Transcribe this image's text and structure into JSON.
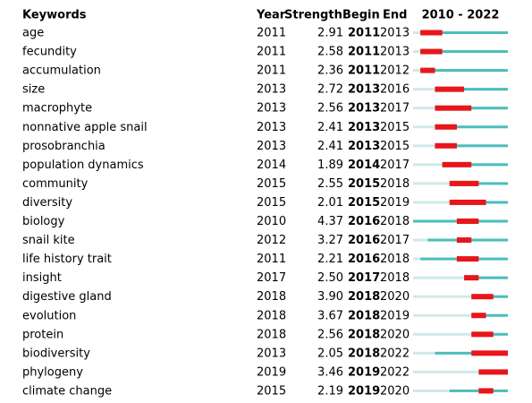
{
  "header": {
    "keywords": "Keywords",
    "year": "Year",
    "strength": "Strength",
    "begin": "Begin",
    "end": "End",
    "range": "2010 - 2022"
  },
  "rows": [
    {
      "keyword": "age",
      "year": 2011,
      "strength": "2.91",
      "begin": 2011,
      "end": 2013
    },
    {
      "keyword": "fecundity",
      "year": 2011,
      "strength": "2.58",
      "begin": 2011,
      "end": 2013
    },
    {
      "keyword": "accumulation",
      "year": 2011,
      "strength": "2.36",
      "begin": 2011,
      "end": 2012
    },
    {
      "keyword": "size",
      "year": 2013,
      "strength": "2.72",
      "begin": 2013,
      "end": 2016
    },
    {
      "keyword": "macrophyte",
      "year": 2013,
      "strength": "2.56",
      "begin": 2013,
      "end": 2017
    },
    {
      "keyword": "nonnative apple snail",
      "year": 2013,
      "strength": "2.41",
      "begin": 2013,
      "end": 2015
    },
    {
      "keyword": "prosobranchia",
      "year": 2013,
      "strength": "2.41",
      "begin": 2013,
      "end": 2015
    },
    {
      "keyword": "population dynamics",
      "year": 2014,
      "strength": "1.89",
      "begin": 2014,
      "end": 2017
    },
    {
      "keyword": "community",
      "year": 2015,
      "strength": "2.55",
      "begin": 2015,
      "end": 2018
    },
    {
      "keyword": "diversity",
      "year": 2015,
      "strength": "2.01",
      "begin": 2015,
      "end": 2019
    },
    {
      "keyword": "biology",
      "year": 2010,
      "strength": "4.37",
      "begin": 2016,
      "end": 2018
    },
    {
      "keyword": "snail kite",
      "year": 2012,
      "strength": "3.27",
      "begin": 2016,
      "end": 2017
    },
    {
      "keyword": "life history trait",
      "year": 2011,
      "strength": "2.21",
      "begin": 2016,
      "end": 2018
    },
    {
      "keyword": "insight",
      "year": 2017,
      "strength": "2.50",
      "begin": 2017,
      "end": 2018
    },
    {
      "keyword": "digestive gland",
      "year": 2018,
      "strength": "3.90",
      "begin": 2018,
      "end": 2020
    },
    {
      "keyword": "evolution",
      "year": 2018,
      "strength": "3.67",
      "begin": 2018,
      "end": 2019
    },
    {
      "keyword": "protein",
      "year": 2018,
      "strength": "2.56",
      "begin": 2018,
      "end": 2020
    },
    {
      "keyword": "biodiversity",
      "year": 2013,
      "strength": "2.05",
      "begin": 2018,
      "end": 2022
    },
    {
      "keyword": "phylogeny",
      "year": 2019,
      "strength": "3.46",
      "begin": 2019,
      "end": 2022
    },
    {
      "keyword": "climate change",
      "year": 2015,
      "strength": "2.19",
      "begin": 2019,
      "end": 2020
    }
  ]
}
